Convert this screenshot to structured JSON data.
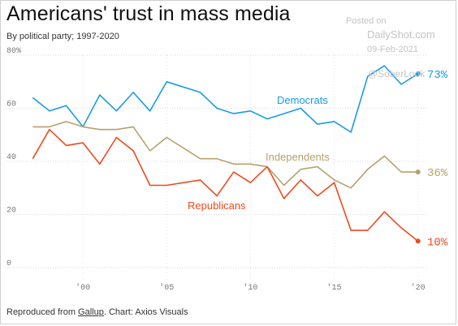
{
  "header": {
    "title": "Americans' trust in mass media",
    "subtitle": "By political party; 1997-2020"
  },
  "watermark": {
    "posted": "Posted on",
    "site": "DailyShot.com",
    "date": "09-Feb-2021",
    "handle": "@SoberLook"
  },
  "footer": {
    "prefix": "Reproduced from ",
    "source_link": "Gallup",
    "suffix": ". Chart: Axios Visuals"
  },
  "chart_data": {
    "type": "line",
    "title": "Americans' trust in mass media",
    "subtitle": "By political party; 1997-2020",
    "xlabel": "",
    "ylabel": "",
    "ylim": [
      0,
      80
    ],
    "xlim": [
      1996.5,
      2020.5
    ],
    "grid": "horizontal",
    "y_ticks": [
      {
        "value": 0,
        "label": "0"
      },
      {
        "value": 20,
        "label": "20"
      },
      {
        "value": 40,
        "label": "40"
      },
      {
        "value": 60,
        "label": "60"
      },
      {
        "value": 80,
        "label": "80%"
      }
    ],
    "x_ticks": [
      {
        "value": 2000,
        "label": "'00"
      },
      {
        "value": 2005,
        "label": "'05"
      },
      {
        "value": 2010,
        "label": "'10"
      },
      {
        "value": 2015,
        "label": "'15"
      },
      {
        "value": 2020,
        "label": "'20"
      }
    ],
    "x": [
      1997,
      1998,
      1999,
      2000,
      2001,
      2002,
      2003,
      2004,
      2005,
      2007,
      2008,
      2009,
      2010,
      2011,
      2012,
      2013,
      2014,
      2015,
      2016,
      2017,
      2018,
      2019,
      2020
    ],
    "series": [
      {
        "name": "Democrats",
        "color": "#1a9be6",
        "values": [
          64,
          59,
          61,
          53,
          65,
          59,
          66,
          59,
          70,
          66,
          60,
          58,
          59,
          56,
          58,
          60,
          54,
          55,
          51,
          72,
          76,
          69,
          73
        ],
        "end_label": "73%"
      },
      {
        "name": "Independents",
        "color": "#b5a26c",
        "values": [
          53,
          53,
          55,
          53,
          52,
          52,
          53,
          44,
          49,
          41,
          41,
          39,
          39,
          38,
          31,
          37,
          38,
          33,
          30,
          37,
          42,
          36,
          36
        ],
        "end_label": "36%"
      },
      {
        "name": "Republicans",
        "color": "#ee4a1e",
        "values": [
          41,
          52,
          46,
          47,
          39,
          49,
          44,
          31,
          31,
          33,
          27,
          36,
          32,
          38,
          26,
          33,
          27,
          32,
          14,
          14,
          21,
          15,
          10
        ],
        "end_label": "10%"
      }
    ]
  }
}
